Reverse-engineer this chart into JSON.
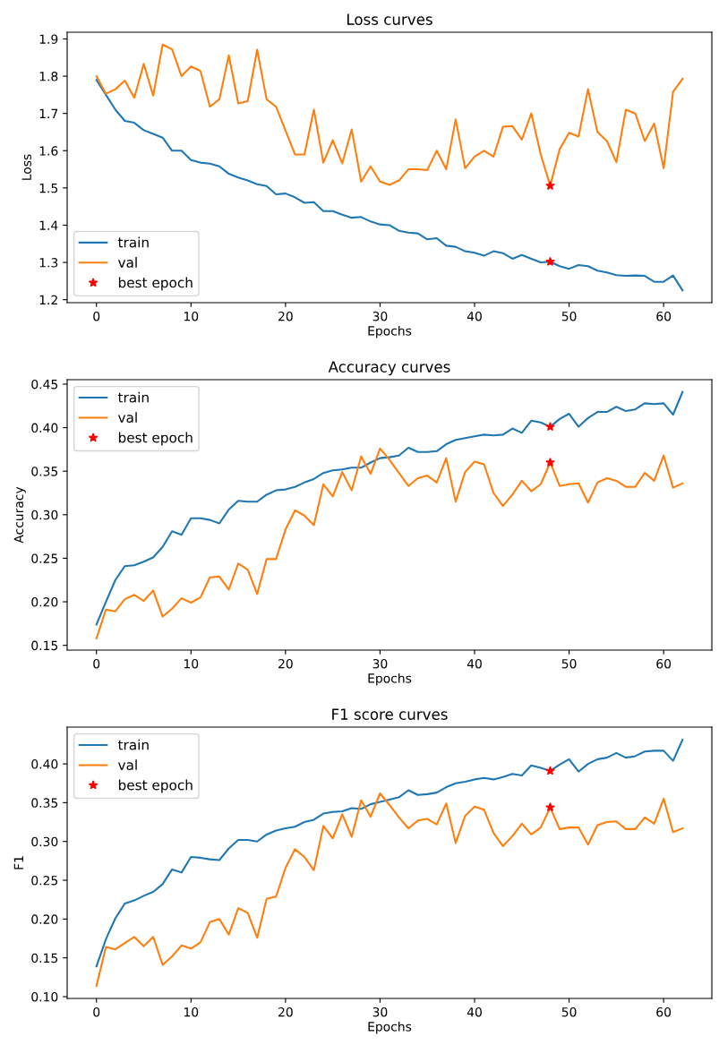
{
  "chart_data": [
    {
      "type": "line",
      "title": "Loss curves",
      "xlabel": "Epochs",
      "ylabel": "Loss",
      "x": [
        0,
        1,
        2,
        3,
        4,
        5,
        6,
        7,
        8,
        9,
        10,
        11,
        12,
        13,
        14,
        15,
        16,
        17,
        18,
        19,
        20,
        21,
        22,
        23,
        24,
        25,
        26,
        27,
        28,
        29,
        30,
        31,
        32,
        33,
        34,
        35,
        36,
        37,
        38,
        39,
        40,
        41,
        42,
        43,
        44,
        45,
        46,
        47,
        48,
        49,
        50,
        51,
        52,
        53,
        54,
        55,
        56,
        57,
        58,
        59,
        60,
        61,
        62
      ],
      "xlim": [
        -3.1,
        65.1
      ],
      "xticks": [
        0,
        10,
        20,
        30,
        40,
        50,
        60
      ],
      "ylim": [
        1.192,
        1.918
      ],
      "yticks": [
        1.2,
        1.3,
        1.4,
        1.5,
        1.6,
        1.7,
        1.8,
        1.9
      ],
      "legend": "bottom left",
      "series": [
        {
          "name": "train",
          "color": "#1f77b4",
          "values": [
            1.79,
            1.75,
            1.71,
            1.68,
            1.675,
            1.655,
            1.645,
            1.635,
            1.6,
            1.6,
            1.575,
            1.568,
            1.565,
            1.558,
            1.538,
            1.528,
            1.52,
            1.51,
            1.505,
            1.483,
            1.485,
            1.475,
            1.46,
            1.462,
            1.438,
            1.438,
            1.428,
            1.42,
            1.422,
            1.41,
            1.402,
            1.4,
            1.385,
            1.38,
            1.378,
            1.362,
            1.365,
            1.345,
            1.342,
            1.33,
            1.326,
            1.318,
            1.33,
            1.325,
            1.31,
            1.32,
            1.31,
            1.3,
            1.302,
            1.29,
            1.283,
            1.293,
            1.29,
            1.278,
            1.273,
            1.266,
            1.264,
            1.265,
            1.264,
            1.248,
            1.248,
            1.265,
            1.225
          ]
        },
        {
          "name": "val",
          "color": "#ff7f0e",
          "values": [
            1.8,
            1.753,
            1.765,
            1.788,
            1.742,
            1.833,
            1.748,
            1.885,
            1.872,
            1.8,
            1.826,
            1.814,
            1.718,
            1.738,
            1.856,
            1.727,
            1.733,
            1.871,
            1.738,
            1.718,
            1.654,
            1.59,
            1.59,
            1.71,
            1.568,
            1.628,
            1.566,
            1.657,
            1.517,
            1.558,
            1.517,
            1.508,
            1.52,
            1.55,
            1.55,
            1.548,
            1.6,
            1.55,
            1.684,
            1.553,
            1.584,
            1.6,
            1.584,
            1.664,
            1.666,
            1.63,
            1.7,
            1.59,
            1.506,
            1.604,
            1.648,
            1.638,
            1.765,
            1.65,
            1.626,
            1.569,
            1.71,
            1.7,
            1.626,
            1.673,
            1.553,
            1.758,
            1.793
          ]
        },
        {
          "name": "best epoch",
          "type": "scatter",
          "marker": "star",
          "color": "#ff0000",
          "values": [
            null,
            null,
            null,
            null,
            null,
            null,
            null,
            null,
            null,
            null,
            null,
            null,
            null,
            null,
            null,
            null,
            null,
            null,
            null,
            null,
            null,
            null,
            null,
            null,
            null,
            null,
            null,
            null,
            null,
            null,
            null,
            null,
            null,
            null,
            null,
            null,
            null,
            null,
            null,
            null,
            null,
            null,
            null,
            null,
            null,
            null,
            null,
            null,
            1.302,
            null,
            null,
            null,
            null,
            null,
            null,
            null,
            null,
            null,
            null,
            null,
            null,
            null,
            null
          ]
        },
        {
          "type": "scatter",
          "marker": "star",
          "color": "#ff0000",
          "values": [
            null,
            null,
            null,
            null,
            null,
            null,
            null,
            null,
            null,
            null,
            null,
            null,
            null,
            null,
            null,
            null,
            null,
            null,
            null,
            null,
            null,
            null,
            null,
            null,
            null,
            null,
            null,
            null,
            null,
            null,
            null,
            null,
            null,
            null,
            null,
            null,
            null,
            null,
            null,
            null,
            null,
            null,
            null,
            null,
            null,
            null,
            null,
            null,
            1.506,
            null,
            null,
            null,
            null,
            null,
            null,
            null,
            null,
            null,
            null,
            null,
            null,
            null,
            null
          ]
        }
      ]
    },
    {
      "type": "line",
      "title": "Accuracy curves",
      "xlabel": "Epochs",
      "ylabel": "Accuracy",
      "x": [
        0,
        1,
        2,
        3,
        4,
        5,
        6,
        7,
        8,
        9,
        10,
        11,
        12,
        13,
        14,
        15,
        16,
        17,
        18,
        19,
        20,
        21,
        22,
        23,
        24,
        25,
        26,
        27,
        28,
        29,
        30,
        31,
        32,
        33,
        34,
        35,
        36,
        37,
        38,
        39,
        40,
        41,
        42,
        43,
        44,
        45,
        46,
        47,
        48,
        49,
        50,
        51,
        52,
        53,
        54,
        55,
        56,
        57,
        58,
        59,
        60,
        61,
        62
      ],
      "xlim": [
        -3.1,
        65.1
      ],
      "xticks": [
        0,
        10,
        20,
        30,
        40,
        50,
        60
      ],
      "ylim": [
        0.1445,
        0.4551
      ],
      "yticks": [
        {
          "value": 0.15,
          "label": "0.15"
        },
        {
          "value": 0.2,
          "label": "0.20"
        },
        {
          "value": 0.25,
          "label": "0.25"
        },
        {
          "value": 0.3,
          "label": "0.30"
        },
        {
          "value": 0.35,
          "label": "0.35"
        },
        {
          "value": 0.4,
          "label": "0.40"
        },
        {
          "value": 0.45,
          "label": "0.45"
        }
      ],
      "legend": "top left",
      "series": [
        {
          "name": "train",
          "color": "#1f77b4",
          "values": [
            0.174,
            0.2,
            0.225,
            0.241,
            0.242,
            0.246,
            0.251,
            0.263,
            0.281,
            0.277,
            0.296,
            0.296,
            0.294,
            0.29,
            0.306,
            0.316,
            0.315,
            0.315,
            0.323,
            0.328,
            0.329,
            0.332,
            0.337,
            0.341,
            0.348,
            0.351,
            0.352,
            0.354,
            0.354,
            0.36,
            0.365,
            0.366,
            0.368,
            0.377,
            0.372,
            0.372,
            0.373,
            0.381,
            0.386,
            0.388,
            0.39,
            0.392,
            0.391,
            0.392,
            0.399,
            0.394,
            0.408,
            0.406,
            0.401,
            0.41,
            0.416,
            0.401,
            0.411,
            0.418,
            0.418,
            0.424,
            0.419,
            0.421,
            0.428,
            0.427,
            0.428,
            0.415,
            0.441
          ]
        },
        {
          "name": "val",
          "color": "#ff7f0e",
          "values": [
            0.158,
            0.191,
            0.189,
            0.203,
            0.208,
            0.201,
            0.213,
            0.183,
            0.192,
            0.204,
            0.199,
            0.205,
            0.228,
            0.229,
            0.214,
            0.244,
            0.237,
            0.209,
            0.249,
            0.249,
            0.283,
            0.305,
            0.299,
            0.288,
            0.335,
            0.321,
            0.349,
            0.328,
            0.367,
            0.347,
            0.376,
            0.363,
            0.348,
            0.333,
            0.342,
            0.345,
            0.337,
            0.365,
            0.315,
            0.349,
            0.361,
            0.358,
            0.325,
            0.31,
            0.323,
            0.339,
            0.327,
            0.335,
            0.36,
            0.333,
            0.335,
            0.336,
            0.314,
            0.337,
            0.342,
            0.339,
            0.332,
            0.332,
            0.348,
            0.339,
            0.368,
            0.331,
            0.336
          ]
        },
        {
          "name": "best epoch",
          "type": "scatter",
          "marker": "star",
          "color": "#ff0000",
          "values": [
            null,
            null,
            null,
            null,
            null,
            null,
            null,
            null,
            null,
            null,
            null,
            null,
            null,
            null,
            null,
            null,
            null,
            null,
            null,
            null,
            null,
            null,
            null,
            null,
            null,
            null,
            null,
            null,
            null,
            null,
            null,
            null,
            null,
            null,
            null,
            null,
            null,
            null,
            null,
            null,
            null,
            null,
            null,
            null,
            null,
            null,
            null,
            null,
            0.401,
            null,
            null,
            null,
            null,
            null,
            null,
            null,
            null,
            null,
            null,
            null,
            null,
            null,
            null
          ]
        },
        {
          "type": "scatter",
          "marker": "star",
          "color": "#ff0000",
          "values": [
            null,
            null,
            null,
            null,
            null,
            null,
            null,
            null,
            null,
            null,
            null,
            null,
            null,
            null,
            null,
            null,
            null,
            null,
            null,
            null,
            null,
            null,
            null,
            null,
            null,
            null,
            null,
            null,
            null,
            null,
            null,
            null,
            null,
            null,
            null,
            null,
            null,
            null,
            null,
            null,
            null,
            null,
            null,
            null,
            null,
            null,
            null,
            null,
            0.36,
            null,
            null,
            null,
            null,
            null,
            null,
            null,
            null,
            null,
            null,
            null,
            null,
            null,
            null
          ]
        }
      ]
    },
    {
      "type": "line",
      "title": "F1 score curves",
      "xlabel": "Epochs",
      "ylabel": "F1",
      "x": [
        0,
        1,
        2,
        3,
        4,
        5,
        6,
        7,
        8,
        9,
        10,
        11,
        12,
        13,
        14,
        15,
        16,
        17,
        18,
        19,
        20,
        21,
        22,
        23,
        24,
        25,
        26,
        27,
        28,
        29,
        30,
        31,
        32,
        33,
        34,
        35,
        36,
        37,
        38,
        39,
        40,
        41,
        42,
        43,
        44,
        45,
        46,
        47,
        48,
        49,
        50,
        51,
        52,
        53,
        54,
        55,
        56,
        57,
        58,
        59,
        60,
        61,
        62
      ],
      "xlim": [
        -3.1,
        65.1
      ],
      "xticks": [
        0,
        10,
        20,
        30,
        40,
        50,
        60
      ],
      "ylim": [
        0.0977,
        0.4474
      ],
      "yticks": [
        {
          "value": 0.1,
          "label": "0.10"
        },
        {
          "value": 0.15,
          "label": "0.15"
        },
        {
          "value": 0.2,
          "label": "0.20"
        },
        {
          "value": 0.25,
          "label": "0.25"
        },
        {
          "value": 0.3,
          "label": "0.30"
        },
        {
          "value": 0.35,
          "label": "0.35"
        },
        {
          "value": 0.4,
          "label": "0.40"
        }
      ],
      "legend": "top left",
      "series": [
        {
          "name": "train",
          "color": "#1f77b4",
          "values": [
            0.139,
            0.174,
            0.201,
            0.22,
            0.224,
            0.23,
            0.235,
            0.245,
            0.264,
            0.26,
            0.28,
            0.279,
            0.277,
            0.276,
            0.291,
            0.302,
            0.302,
            0.3,
            0.309,
            0.314,
            0.317,
            0.319,
            0.325,
            0.328,
            0.336,
            0.338,
            0.339,
            0.343,
            0.342,
            0.348,
            0.351,
            0.354,
            0.357,
            0.366,
            0.36,
            0.361,
            0.363,
            0.37,
            0.375,
            0.377,
            0.38,
            0.382,
            0.38,
            0.383,
            0.387,
            0.385,
            0.398,
            0.395,
            0.391,
            0.399,
            0.406,
            0.39,
            0.4,
            0.406,
            0.408,
            0.414,
            0.408,
            0.41,
            0.416,
            0.417,
            0.417,
            0.404,
            0.431
          ]
        },
        {
          "name": "val",
          "color": "#ff7f0e",
          "values": [
            0.114,
            0.164,
            0.161,
            0.169,
            0.177,
            0.165,
            0.177,
            0.141,
            0.152,
            0.166,
            0.162,
            0.17,
            0.196,
            0.2,
            0.18,
            0.214,
            0.208,
            0.176,
            0.226,
            0.229,
            0.266,
            0.29,
            0.28,
            0.263,
            0.32,
            0.304,
            0.335,
            0.306,
            0.353,
            0.332,
            0.362,
            0.347,
            0.331,
            0.317,
            0.327,
            0.329,
            0.322,
            0.349,
            0.298,
            0.333,
            0.345,
            0.341,
            0.311,
            0.294,
            0.307,
            0.323,
            0.309,
            0.318,
            0.344,
            0.316,
            0.318,
            0.318,
            0.296,
            0.321,
            0.325,
            0.326,
            0.316,
            0.316,
            0.331,
            0.323,
            0.355,
            0.312,
            0.317
          ]
        },
        {
          "name": "best epoch",
          "type": "scatter",
          "marker": "star",
          "color": "#ff0000",
          "values": [
            null,
            null,
            null,
            null,
            null,
            null,
            null,
            null,
            null,
            null,
            null,
            null,
            null,
            null,
            null,
            null,
            null,
            null,
            null,
            null,
            null,
            null,
            null,
            null,
            null,
            null,
            null,
            null,
            null,
            null,
            null,
            null,
            null,
            null,
            null,
            null,
            null,
            null,
            null,
            null,
            null,
            null,
            null,
            null,
            null,
            null,
            null,
            null,
            0.391,
            null,
            null,
            null,
            null,
            null,
            null,
            null,
            null,
            null,
            null,
            null,
            null,
            null,
            null
          ]
        },
        {
          "type": "scatter",
          "marker": "star",
          "color": "#ff0000",
          "values": [
            null,
            null,
            null,
            null,
            null,
            null,
            null,
            null,
            null,
            null,
            null,
            null,
            null,
            null,
            null,
            null,
            null,
            null,
            null,
            null,
            null,
            null,
            null,
            null,
            null,
            null,
            null,
            null,
            null,
            null,
            null,
            null,
            null,
            null,
            null,
            null,
            null,
            null,
            null,
            null,
            null,
            null,
            null,
            null,
            null,
            null,
            null,
            null,
            0.344,
            null,
            null,
            null,
            null,
            null,
            null,
            null,
            null,
            null,
            null,
            null,
            null,
            null,
            null
          ]
        }
      ]
    }
  ]
}
